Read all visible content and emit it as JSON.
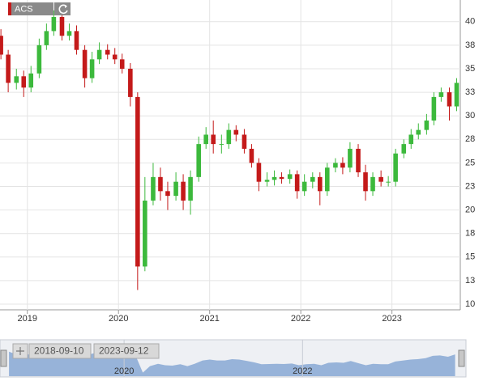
{
  "chart_data": {
    "type": "candlestick",
    "title": "ACS",
    "x": [
      2018.71,
      2018.79,
      2018.88,
      2018.96,
      2019.04,
      2019.13,
      2019.21,
      2019.29,
      2019.38,
      2019.46,
      2019.54,
      2019.63,
      2019.71,
      2019.79,
      2019.88,
      2019.96,
      2020.04,
      2020.13,
      2020.21,
      2020.29,
      2020.38,
      2020.46,
      2020.54,
      2020.63,
      2020.71,
      2020.79,
      2020.88,
      2020.96,
      2021.04,
      2021.13,
      2021.21,
      2021.29,
      2021.38,
      2021.46,
      2021.54,
      2021.63,
      2021.71,
      2021.79,
      2021.88,
      2021.96,
      2022.04,
      2022.13,
      2022.21,
      2022.29,
      2022.38,
      2022.46,
      2022.54,
      2022.63,
      2022.71,
      2022.79,
      2022.88,
      2022.96,
      2023.04,
      2023.13,
      2023.21,
      2023.29,
      2023.38,
      2023.46,
      2023.54,
      2023.63,
      2023.71
    ],
    "open": [
      38.5,
      36.5,
      33.5,
      34.2,
      33.0,
      34.5,
      37.5,
      39.0,
      40.5,
      38.5,
      39.0,
      37.0,
      34.0,
      36.0,
      37.0,
      36.5,
      36.0,
      35.0,
      32.0,
      14.0,
      21.0,
      23.5,
      22.0,
      21.5,
      23.0,
      21.0,
      23.5,
      27.0,
      28.0,
      27.0,
      27.0,
      28.5,
      28.0,
      26.5,
      25.0,
      23.0,
      23.2,
      23.5,
      23.3,
      23.8,
      22.0,
      23.0,
      23.5,
      22.0,
      24.5,
      25.0,
      24.5,
      26.5,
      24.0,
      22.0,
      23.5,
      23.0,
      23.0,
      26.0,
      27.0,
      28.0,
      28.5,
      29.5,
      32.0,
      32.5,
      31.0
    ],
    "high": [
      39.2,
      37.0,
      35.0,
      34.8,
      35.3,
      38.2,
      39.8,
      41.2,
      41.0,
      39.8,
      39.6,
      37.5,
      36.8,
      37.8,
      37.6,
      37.2,
      36.6,
      35.6,
      32.5,
      23.5,
      25.0,
      24.5,
      23.0,
      24.0,
      23.8,
      24.2,
      27.8,
      28.8,
      29.5,
      28.0,
      29.2,
      29.0,
      28.6,
      27.0,
      25.5,
      24.0,
      24.2,
      24.0,
      24.3,
      24.2,
      23.8,
      24.0,
      24.0,
      25.0,
      25.5,
      25.6,
      27.2,
      27.0,
      24.8,
      24.0,
      24.2,
      23.6,
      26.5,
      27.5,
      28.6,
      29.2,
      30.2,
      32.5,
      33.0,
      33.0,
      34.0
    ],
    "low": [
      36.0,
      32.5,
      32.8,
      32.0,
      32.5,
      34.0,
      37.0,
      38.5,
      38.0,
      38.0,
      36.5,
      33.0,
      33.5,
      35.5,
      36.0,
      35.5,
      34.5,
      31.0,
      11.5,
      13.5,
      20.5,
      21.0,
      20.0,
      21.0,
      20.0,
      19.5,
      23.0,
      26.5,
      26.0,
      26.0,
      26.5,
      27.3,
      26.0,
      24.5,
      22.0,
      22.5,
      22.6,
      22.8,
      22.8,
      21.2,
      21.5,
      22.3,
      20.5,
      21.5,
      24.0,
      23.8,
      24.0,
      23.5,
      21.0,
      21.5,
      22.5,
      22.5,
      22.5,
      25.5,
      26.5,
      27.5,
      28.0,
      29.0,
      31.5,
      29.5,
      30.5
    ],
    "close": [
      36.5,
      33.5,
      34.2,
      33.0,
      34.5,
      37.5,
      39.0,
      40.5,
      38.5,
      39.0,
      37.0,
      34.0,
      36.0,
      37.0,
      36.5,
      36.0,
      35.0,
      32.0,
      14.0,
      21.0,
      23.5,
      22.0,
      21.5,
      23.0,
      21.0,
      23.5,
      27.0,
      28.0,
      27.0,
      27.0,
      28.5,
      28.0,
      26.5,
      25.0,
      23.0,
      23.2,
      23.5,
      23.3,
      23.8,
      22.0,
      23.0,
      23.5,
      22.0,
      24.5,
      25.0,
      24.5,
      26.5,
      24.0,
      22.0,
      23.5,
      23.0,
      23.0,
      26.0,
      27.0,
      28.0,
      28.5,
      29.5,
      32.0,
      32.5,
      31.0,
      33.5
    ],
    "up_color": "#3cb93c",
    "down_color": "#c41a1a",
    "xlim": [
      2018.7,
      2023.75
    ],
    "xticks": [
      2019,
      2020,
      2021,
      2022,
      2023
    ],
    "ylim": [
      9.4,
      42.3
    ],
    "yticks": [
      10,
      {
        "value": 12.5,
        "label": "13"
      },
      15,
      {
        "value": 17.5,
        "label": "18"
      },
      20,
      {
        "value": 22.5,
        "label": "23"
      },
      25,
      {
        "value": 27.5,
        "label": "28"
      },
      30,
      {
        "value": 32.5,
        "label": "33"
      },
      35,
      {
        "value": 37.5,
        "label": "38"
      },
      40
    ],
    "grid": true,
    "navigator": {
      "from": "2018-09-10",
      "to": "2023-09-12",
      "xticks": [
        2020,
        2022
      ],
      "color": "#7a9fd0"
    }
  }
}
